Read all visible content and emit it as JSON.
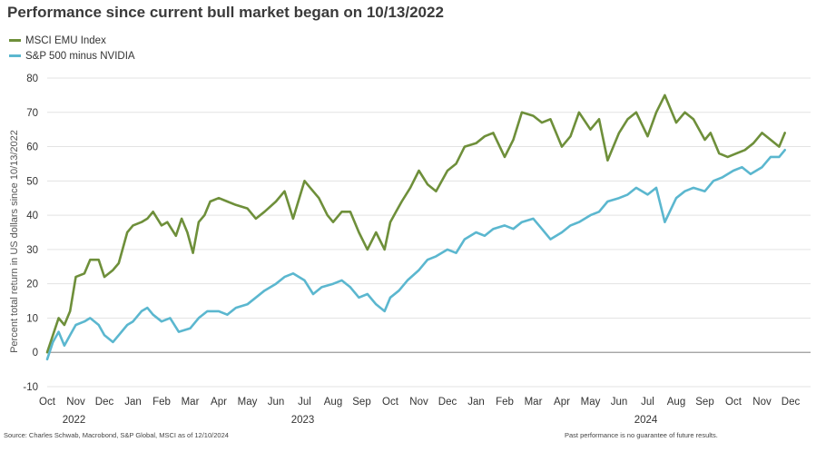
{
  "chart_data": {
    "type": "line",
    "title": "Performance since current bull market began on 10/13/2022",
    "ylabel": "Percent total return in US dollars since 10/13/2022",
    "xlabel": "",
    "ylim": [
      -10,
      80
    ],
    "yticks": [
      -10,
      0,
      10,
      20,
      30,
      40,
      50,
      60,
      70,
      80
    ],
    "xlim": [
      0,
      26.3
    ],
    "month_labels": [
      "Oct",
      "Nov",
      "Dec",
      "Jan",
      "Feb",
      "Mar",
      "Apr",
      "May",
      "Jun",
      "Jul",
      "Aug",
      "Sep",
      "Oct",
      "Nov",
      "Dec",
      "Jan",
      "Feb",
      "Mar",
      "Apr",
      "May",
      "Jun",
      "Jul",
      "Aug",
      "Sep",
      "Oct",
      "Nov",
      "Dec"
    ],
    "year_labels": [
      {
        "label": "2022",
        "month_index": 1
      },
      {
        "label": "2023",
        "month_index": 9
      },
      {
        "label": "2024",
        "month_index": 21
      }
    ],
    "grid": true,
    "legend_position": "top-left",
    "series": [
      {
        "name": "MSCI EMU Index",
        "color": "#6e8f3a",
        "x": [
          0,
          0.2,
          0.4,
          0.6,
          0.8,
          1.0,
          1.3,
          1.5,
          1.8,
          2.0,
          2.3,
          2.5,
          2.8,
          3.0,
          3.3,
          3.5,
          3.7,
          4.0,
          4.2,
          4.5,
          4.7,
          4.9,
          5.1,
          5.3,
          5.5,
          5.7,
          6.0,
          6.3,
          6.6,
          7.0,
          7.3,
          7.6,
          8.0,
          8.3,
          8.6,
          9.0,
          9.2,
          9.5,
          9.8,
          10.0,
          10.3,
          10.6,
          10.9,
          11.2,
          11.5,
          11.8,
          12.0,
          12.2,
          12.4,
          12.7,
          13.0,
          13.3,
          13.6,
          14.0,
          14.3,
          14.6,
          15.0,
          15.3,
          15.6,
          16.0,
          16.3,
          16.6,
          17.0,
          17.3,
          17.6,
          18.0,
          18.3,
          18.6,
          19.0,
          19.3,
          19.6,
          20.0,
          20.3,
          20.6,
          21.0,
          21.3,
          21.6,
          22.0,
          22.3,
          22.6,
          23.0,
          23.2,
          23.5,
          23.8,
          24.1,
          24.4,
          24.7,
          25.0,
          25.3,
          25.6,
          25.8
        ],
        "values": [
          0,
          5,
          10,
          8,
          12,
          22,
          23,
          27,
          27,
          22,
          24,
          26,
          35,
          37,
          38,
          39,
          41,
          37,
          38,
          34,
          39,
          35,
          29,
          38,
          40,
          44,
          45,
          44,
          43,
          42,
          39,
          41,
          44,
          47,
          39,
          50,
          48,
          45,
          40,
          38,
          41,
          41,
          35,
          30,
          35,
          30,
          38,
          41,
          44,
          48,
          53,
          49,
          47,
          53,
          55,
          60,
          61,
          63,
          64,
          57,
          62,
          70,
          69,
          67,
          68,
          60,
          63,
          70,
          65,
          68,
          56,
          64,
          68,
          70,
          63,
          70,
          75,
          67,
          70,
          68,
          62,
          64,
          58,
          57,
          58,
          59,
          61,
          64,
          62,
          60,
          64
        ]
      },
      {
        "name": "S&P 500 minus NVIDIA",
        "color": "#5bb7cf",
        "x": [
          0,
          0.2,
          0.4,
          0.6,
          0.8,
          1.0,
          1.3,
          1.5,
          1.8,
          2.0,
          2.3,
          2.5,
          2.8,
          3.0,
          3.3,
          3.5,
          3.7,
          4.0,
          4.3,
          4.6,
          5.0,
          5.3,
          5.6,
          6.0,
          6.3,
          6.6,
          7.0,
          7.3,
          7.6,
          8.0,
          8.3,
          8.6,
          9.0,
          9.3,
          9.6,
          10.0,
          10.3,
          10.6,
          10.9,
          11.2,
          11.5,
          11.8,
          12.0,
          12.3,
          12.6,
          13.0,
          13.3,
          13.6,
          14.0,
          14.3,
          14.6,
          15.0,
          15.3,
          15.6,
          16.0,
          16.3,
          16.6,
          17.0,
          17.3,
          17.6,
          18.0,
          18.3,
          18.6,
          19.0,
          19.3,
          19.6,
          20.0,
          20.3,
          20.6,
          21.0,
          21.3,
          21.6,
          22.0,
          22.3,
          22.6,
          23.0,
          23.3,
          23.6,
          24.0,
          24.3,
          24.6,
          25.0,
          25.3,
          25.6,
          25.8
        ],
        "values": [
          -2,
          3,
          6,
          2,
          5,
          8,
          9,
          10,
          8,
          5,
          3,
          5,
          8,
          9,
          12,
          13,
          11,
          9,
          10,
          6,
          7,
          10,
          12,
          12,
          11,
          13,
          14,
          16,
          18,
          20,
          22,
          23,
          21,
          17,
          19,
          20,
          21,
          19,
          16,
          17,
          14,
          12,
          16,
          18,
          21,
          24,
          27,
          28,
          30,
          29,
          33,
          35,
          34,
          36,
          37,
          36,
          38,
          39,
          36,
          33,
          35,
          37,
          38,
          40,
          41,
          44,
          45,
          46,
          48,
          46,
          48,
          38,
          45,
          47,
          48,
          47,
          50,
          51,
          53,
          54,
          52,
          54,
          57,
          57,
          59
        ]
      }
    ]
  },
  "footer": {
    "source": "Source: Charles Schwab, Macrobond, S&P Global, MSCI as of 12/10/2024",
    "disclaimer": "Past performance is no guarantee of future results."
  }
}
